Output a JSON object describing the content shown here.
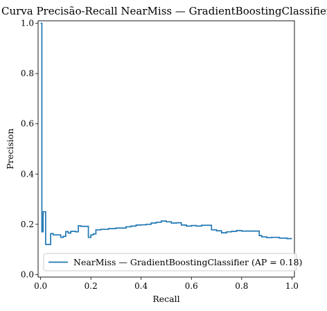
{
  "chart_data": {
    "type": "line",
    "title": "Curva Precisão-Recall NearMiss — GradientBoostingClassifier",
    "xlabel": "Recall",
    "ylabel": "Precision",
    "xlim": [
      -0.01,
      1.01
    ],
    "ylim": [
      -0.01,
      1.01
    ],
    "xticks": [
      "0.0",
      "0.2",
      "0.4",
      "0.6",
      "0.8",
      "1.0"
    ],
    "yticks": [
      "0.0",
      "0.2",
      "0.4",
      "0.6",
      "0.8",
      "1.0"
    ],
    "grid": false,
    "legend_position": "lower-right",
    "color": "#1f77b4",
    "series": [
      {
        "name": "NearMiss — GradientBoostingClassifier (AP = 0.18)",
        "step": "post",
        "recall": [
          1.0,
          0.98,
          0.95,
          0.92,
          0.9,
          0.88,
          0.87,
          0.85,
          0.8,
          0.78,
          0.76,
          0.74,
          0.72,
          0.7,
          0.68,
          0.66,
          0.64,
          0.62,
          0.6,
          0.58,
          0.56,
          0.54,
          0.52,
          0.5,
          0.48,
          0.46,
          0.44,
          0.42,
          0.4,
          0.38,
          0.36,
          0.34,
          0.32,
          0.3,
          0.27,
          0.24,
          0.22,
          0.21,
          0.2,
          0.19,
          0.16,
          0.15,
          0.14,
          0.12,
          0.11,
          0.1,
          0.09,
          0.08,
          0.05,
          0.04,
          0.02,
          0.01,
          0.005,
          0.0
        ],
        "precision": [
          0.143,
          0.145,
          0.148,
          0.147,
          0.15,
          0.155,
          0.173,
          0.173,
          0.175,
          0.172,
          0.17,
          0.166,
          0.174,
          0.178,
          0.196,
          0.196,
          0.193,
          0.195,
          0.193,
          0.197,
          0.206,
          0.205,
          0.21,
          0.213,
          0.208,
          0.205,
          0.2,
          0.198,
          0.197,
          0.193,
          0.19,
          0.185,
          0.185,
          0.183,
          0.18,
          0.178,
          0.162,
          0.158,
          0.148,
          0.192,
          0.194,
          0.17,
          0.172,
          0.165,
          0.171,
          0.152,
          0.148,
          0.158,
          0.163,
          0.12,
          0.25,
          0.17,
          1.0,
          1.0
        ]
      }
    ]
  }
}
